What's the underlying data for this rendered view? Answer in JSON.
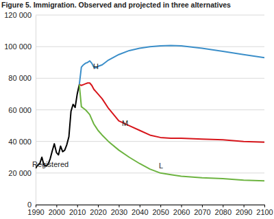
{
  "chart_data": {
    "type": "line",
    "title": "Figure 5. Immigration. Observed and projected in three alternatives",
    "x": [
      1990,
      1991,
      1992,
      1993,
      1994,
      1995,
      1996,
      1997,
      1998,
      1999,
      2000,
      2001,
      2002,
      2003,
      2004,
      2005,
      2006,
      2007,
      2008,
      2009,
      2010,
      2011,
      2012,
      2013,
      2014,
      2015,
      2016,
      2017,
      2018,
      2019,
      2020,
      2022,
      2025,
      2030,
      2035,
      2040,
      2045,
      2050,
      2055,
      2060,
      2070,
      2080,
      2090,
      2100
    ],
    "series": [
      {
        "name": "Registered",
        "color": "#000000",
        "values": [
          23000,
          25000,
          26000,
          30000,
          25000,
          24500,
          25500,
          29000,
          34000,
          38500,
          33000,
          31500,
          37000,
          33500,
          34500,
          38000,
          43000,
          59000,
          63500,
          61500,
          70000,
          76000,
          null,
          null,
          null,
          null,
          null,
          null,
          null,
          null,
          null,
          null,
          null,
          null,
          null,
          null,
          null,
          null,
          null,
          null,
          null,
          null,
          null,
          null
        ]
      },
      {
        "name": "H",
        "color": "#3a8ec9",
        "values": [
          null,
          null,
          null,
          null,
          null,
          null,
          null,
          null,
          null,
          null,
          null,
          null,
          null,
          null,
          null,
          null,
          null,
          null,
          null,
          null,
          null,
          76000,
          87000,
          88500,
          89500,
          90000,
          91000,
          89500,
          87000,
          86500,
          87500,
          88500,
          91500,
          95000,
          97500,
          99000,
          100000,
          100500,
          100700,
          100500,
          99000,
          97000,
          95000,
          93000
        ]
      },
      {
        "name": "M",
        "color": "#d7141a",
        "values": [
          null,
          null,
          null,
          null,
          null,
          null,
          null,
          null,
          null,
          null,
          null,
          null,
          null,
          null,
          null,
          null,
          null,
          null,
          null,
          null,
          null,
          76000,
          75500,
          76000,
          76500,
          77000,
          77000,
          75500,
          73000,
          71500,
          70000,
          67000,
          61000,
          53000,
          50000,
          47000,
          44000,
          42500,
          42000,
          42000,
          41500,
          41000,
          40000,
          39500
        ]
      },
      {
        "name": "L",
        "color": "#6cb33f",
        "values": [
          null,
          null,
          null,
          null,
          null,
          null,
          null,
          null,
          null,
          null,
          null,
          null,
          null,
          null,
          null,
          null,
          null,
          null,
          null,
          null,
          null,
          76000,
          62000,
          61000,
          60000,
          58500,
          57000,
          54000,
          51000,
          49000,
          47000,
          44000,
          40000,
          34500,
          30000,
          26000,
          22500,
          20000,
          19000,
          18000,
          17000,
          16500,
          15500,
          15000
        ]
      }
    ],
    "xlim": [
      1990,
      2100
    ],
    "xticks": [
      1990,
      2000,
      2010,
      2020,
      2030,
      2040,
      2050,
      2060,
      2070,
      2080,
      2090,
      2100
    ],
    "ylim": [
      0,
      120000
    ],
    "yticks": [
      0,
      {
        "value": 20000,
        "label": "20 000"
      },
      {
        "value": 40000,
        "label": "40 000"
      },
      {
        "value": 60000,
        "label": "60 000"
      },
      {
        "value": 80000,
        "label": "80 000"
      },
      {
        "value": 100000,
        "label": "100 000"
      },
      {
        "value": 120000,
        "label": "120 000"
      }
    ],
    "grid": true
  }
}
